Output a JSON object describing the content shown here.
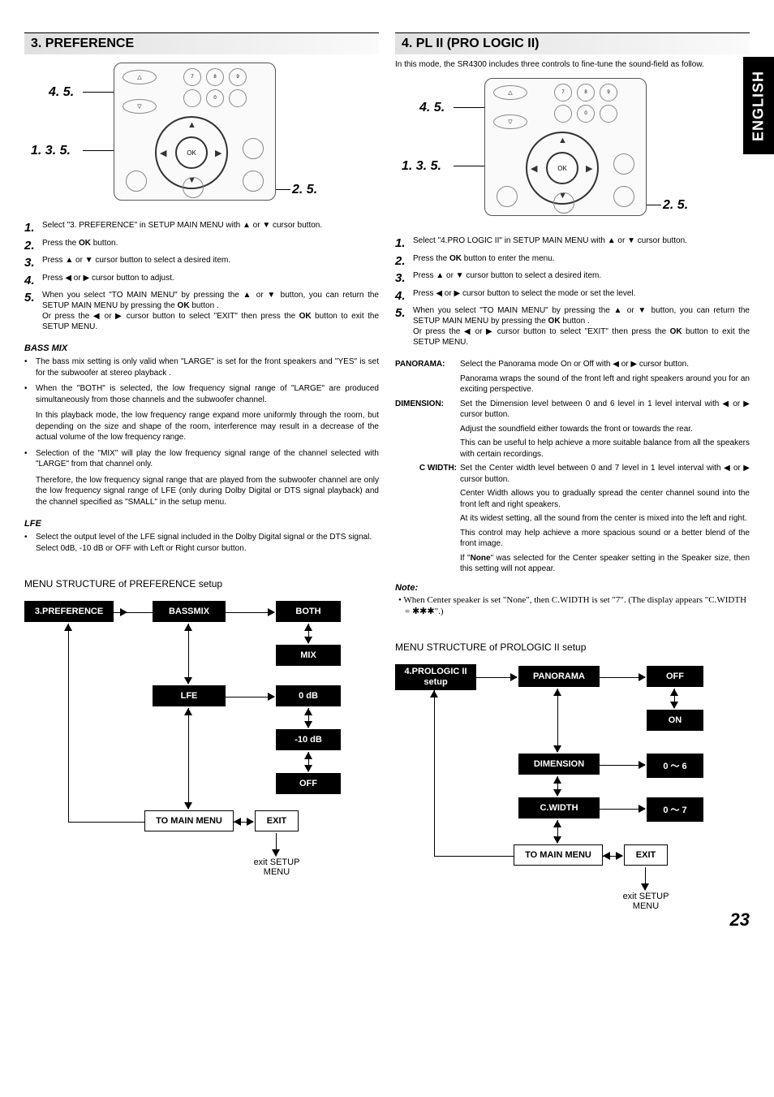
{
  "sideTab": "ENGLISH",
  "pageNumber": "23",
  "left": {
    "header": "3. PREFERENCE",
    "callouts": {
      "topLeft": "4. 5.",
      "midLeft": "1. 3. 5.",
      "botRight": "2. 5."
    },
    "ok": "OK",
    "steps": [
      "Select \"3. PREFERENCE\" in SETUP MAIN MENU with ▲ or ▼ cursor button.",
      "Press the <b>OK</b> button.",
      "Press ▲ or ▼ cursor button to select a desired item.",
      "Press ◀ or ▶ cursor button to adjust.",
      "When you select \"TO MAIN MENU\" by pressing the ▲ or ▼ button, you can return the SETUP MAIN MENU by pressing the <b>OK</b> button .<br>Or press the ◀ or ▶ cursor button to select \"EXIT\" then press the <b>OK</b> button to exit the SETUP MENU."
    ],
    "bassmixHead": "BASS MIX",
    "bassmixBullets": [
      [
        "The bass mix setting is only valid when \"LARGE\" is set for the front speakers and \"YES\" is set for the subwoofer at stereo playback ."
      ],
      [
        "When the \"BOTH\" is selected, the low frequency signal range of \"LARGE\" are produced simultaneously from those channels and the subwoofer channel.",
        "In this playback mode, the low frequency range expand more uniformly through the room, but depending on the size and shape of the room, interference may result in a decrease of the actual volume of the low frequency range."
      ],
      [
        "Selection of the \"MIX\" will play the low frequency signal range of the channel selected with \"LARGE\" from that channel only.",
        "Therefore, the low frequency signal range that are played from the subwoofer channel are only the low frequency signal range of LFE (only during Dolby Digital or DTS signal playback) and the channel specified as \"SMALL\" in the setup menu."
      ]
    ],
    "lfeHead": "LFE",
    "lfeBullets": [
      [
        "Select the output level of the LFE signal included in the Dolby Digital signal or the DTS signal.<br>Select 0dB, -10 dB or OFF with Left or Right cursor button."
      ]
    ],
    "menuTitle": "MENU STRUCTURE of PREFERENCE setup",
    "flow": {
      "root": "3.PREFERENCE",
      "bassmix": "BASSMIX",
      "both": "BOTH",
      "mix": "MIX",
      "lfe": "LFE",
      "zero": "0 dB",
      "minus10": "-10 dB",
      "off": "OFF",
      "tomain": "TO MAIN MENU",
      "exit": "EXIT",
      "exitText": "exit SETUP MENU"
    }
  },
  "right": {
    "header": "4. PL II (PRO LOGIC II)",
    "intro": "In this mode, the SR4300 includes three controls to fine-tune the sound-field as follow.",
    "callouts": {
      "topLeft": "4. 5.",
      "midLeft": "1. 3. 5.",
      "botRight": "2. 5."
    },
    "ok": "OK",
    "steps": [
      "Select \"4.PRO LOGIC II\" in SETUP MAIN MENU with ▲ or ▼ cursor button.",
      "Press the <b>OK</b> button to enter the menu.",
      "Press ▲ or ▼ cursor button to select a desired item.",
      "Press ◀ or ▶ cursor button to select the mode or set the level.",
      "When you select \"TO MAIN MENU\" by pressing the ▲ or ▼ button, you can return the SETUP MAIN MENU by pressing the <b>OK</b> button .<br>Or press the ◀ or ▶ cursor button to select \"EXIT\" then press the <b>OK</b> button to exit the SETUP MENU."
    ],
    "defs": [
      {
        "term": "PANORAMA:",
        "paras": [
          "Select the Panorama mode On or Off with ◀ or ▶ cursor button.",
          "Panorama wraps the sound of the front left and right speakers around you for an exciting perspective."
        ]
      },
      {
        "term": "DIMENSION:",
        "paras": [
          "Set the Dimension level between 0 and 6 level in 1 level interval with ◀ or ▶ cursor button.",
          "Adjust the soundfield either towards the front or towards the rear.",
          "This can be useful to help achieve a more suitable balance from all the speakers with certain recordings."
        ]
      },
      {
        "term": "C WIDTH:",
        "paras": [
          "Set the Center width level between 0 and 7 level in 1 level interval with ◀ or ▶ cursor button.",
          "Center Width allows you to gradually spread the center channel sound into the front left and right speakers.",
          "At its widest setting, all the sound from the center is mixed into the left and right.",
          "This control may help achieve a more spacious sound or a better blend of the front image.",
          "If \"<b>None</b>\" was selected for the Center speaker setting in the Speaker size, then this setting will not appear."
        ]
      }
    ],
    "noteHead": "Note:",
    "noteBody": "• When Center speaker is set \"None\", then C.WIDTH is set \"7\". (The display appears \"C.WIDTH = ✱✱✱\".)",
    "menuTitle": "MENU STRUCTURE of PROLOGIC II setup",
    "flow": {
      "root": "4.PROLOGIC II setup",
      "panorama": "PANORAMA",
      "off": "OFF",
      "on": "ON",
      "dimension": "DIMENSION",
      "r06": "0 ～ 6",
      "cwidth": "C.WIDTH",
      "r07": "0 ～ 7",
      "tomain": "TO MAIN MENU",
      "exit": "EXIT",
      "exitText": "exit SETUP MENU"
    }
  }
}
